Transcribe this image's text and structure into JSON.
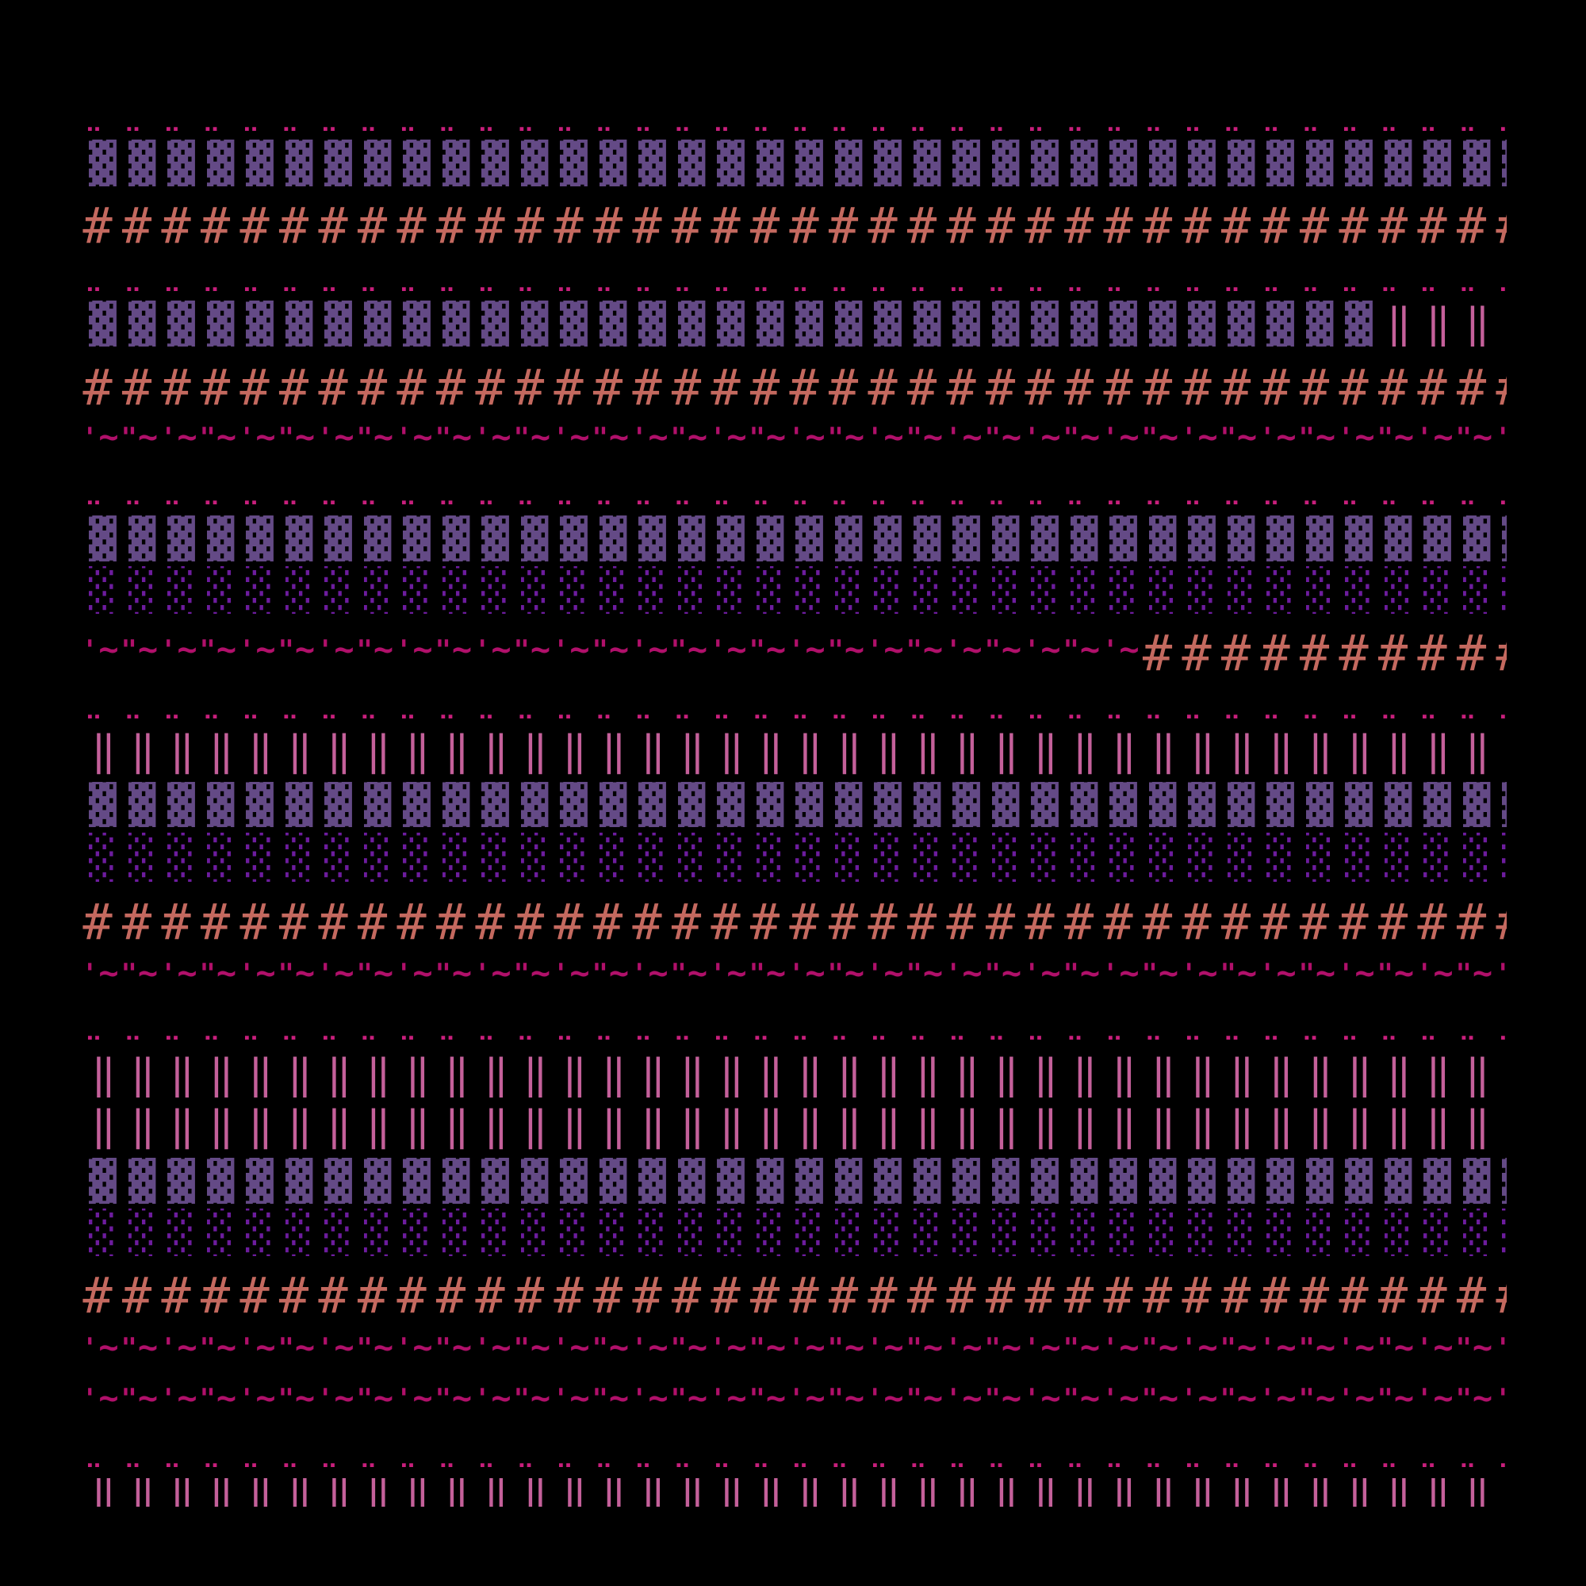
{
  "columns": 37,
  "colors": {
    "background": "#000000",
    "dark_shade": "#644a86",
    "light_shade": "#6d1c9e",
    "hash": "#c4695f",
    "dots": "#c81f7c",
    "double_bar": "#c4609a",
    "quote_tilde": "#b0106a"
  },
  "rows": [
    [
      {
        "glyphs": [
          "¨"
        ],
        "count": 37
      }
    ],
    [
      {
        "glyphs": [
          "▓"
        ],
        "count": 37
      }
    ],
    [
      {
        "glyphs": [
          "#"
        ],
        "count": 37
      }
    ],
    [
      {
        "glyphs": [
          "¨"
        ],
        "count": 37
      }
    ],
    [
      {
        "glyphs": [
          "▓"
        ],
        "count": 33
      },
      {
        "glyphs": [
          "‖"
        ],
        "count": 3
      },
      {
        "glyphs": [
          " "
        ],
        "count": 1
      }
    ],
    [
      {
        "glyphs": [
          "#"
        ],
        "count": 37
      }
    ],
    [
      {
        "glyphs": [
          "'~",
          "\"~"
        ],
        "count": 37
      }
    ],
    [
      {
        "glyphs": [
          "¨"
        ],
        "count": 37
      }
    ],
    [
      {
        "glyphs": [
          "▓"
        ],
        "count": 37
      }
    ],
    [
      {
        "glyphs": [
          "░"
        ],
        "count": 37
      }
    ],
    [
      {
        "glyphs": [
          "'~",
          "\"~"
        ],
        "count": 27
      },
      {
        "glyphs": [
          "#"
        ],
        "count": 10
      }
    ],
    [
      {
        "glyphs": [
          "¨"
        ],
        "count": 37
      }
    ],
    [
      {
        "glyphs": [
          "‖"
        ],
        "count": 36
      },
      {
        "glyphs": [
          " "
        ],
        "count": 1
      }
    ],
    [
      {
        "glyphs": [
          "▓"
        ],
        "count": 37
      }
    ],
    [
      {
        "glyphs": [
          "░"
        ],
        "count": 37
      }
    ],
    [
      {
        "glyphs": [
          "#"
        ],
        "count": 37
      }
    ],
    [
      {
        "glyphs": [
          "'~",
          "\"~"
        ],
        "count": 37
      }
    ],
    [
      {
        "glyphs": [
          "¨"
        ],
        "count": 37
      }
    ],
    [
      {
        "glyphs": [
          "‖"
        ],
        "count": 36
      },
      {
        "glyphs": [
          " "
        ],
        "count": 1
      }
    ],
    [
      {
        "glyphs": [
          "‖"
        ],
        "count": 36
      },
      {
        "glyphs": [
          " "
        ],
        "count": 1
      }
    ],
    [
      {
        "glyphs": [
          "▓"
        ],
        "count": 37
      }
    ],
    [
      {
        "glyphs": [
          "░"
        ],
        "count": 37
      }
    ],
    [
      {
        "glyphs": [
          "#"
        ],
        "count": 37
      }
    ],
    [
      {
        "glyphs": [
          "'~",
          "\"~"
        ],
        "count": 37
      }
    ],
    [
      {
        "glyphs": [
          "'~",
          "\"~"
        ],
        "count": 37
      }
    ],
    [
      {
        "glyphs": [
          "¨"
        ],
        "count": 37
      }
    ],
    [
      {
        "glyphs": [
          "‖"
        ],
        "count": 36
      },
      {
        "glyphs": [
          " "
        ],
        "count": 1
      }
    ]
  ]
}
